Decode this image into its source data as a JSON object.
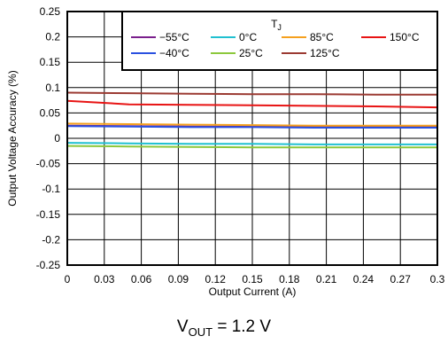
{
  "chart_data": {
    "type": "line",
    "xlabel": "Output Current (A)",
    "ylabel": "Output Voltage Accuracy (%)",
    "xlim": [
      0,
      0.3
    ],
    "ylim": [
      -0.25,
      0.25
    ],
    "x_ticks": [
      "0",
      "0.03",
      "0.06",
      "0.09",
      "0.12",
      "0.15",
      "0.18",
      "0.21",
      "0.24",
      "0.27",
      "0.3"
    ],
    "y_ticks": [
      "0.25",
      "0.2",
      "0.15",
      "0.1",
      "0.05",
      "0",
      "-0.05",
      "-0.1",
      "-0.15",
      "-0.2",
      "-0.25"
    ],
    "grid": true,
    "legend": {
      "title_main": "T",
      "title_sub": "J",
      "placement": "top-right"
    },
    "x": [
      0,
      0.05,
      0.1,
      0.15,
      0.2,
      0.25,
      0.3
    ],
    "series": [
      {
        "name": "−55°C",
        "color": "#7a1f8c",
        "values": [
          0.025,
          0.024,
          0.023,
          0.023,
          0.022,
          0.022,
          0.022
        ]
      },
      {
        "name": "−40°C",
        "color": "#2a50e0",
        "values": [
          0.024,
          0.023,
          0.022,
          0.022,
          0.021,
          0.021,
          0.021
        ]
      },
      {
        "name": "0°C",
        "color": "#20c0d0",
        "values": [
          -0.009,
          -0.01,
          -0.011,
          -0.011,
          -0.012,
          -0.012,
          -0.012
        ]
      },
      {
        "name": "25°C",
        "color": "#8cc83c",
        "values": [
          -0.015,
          -0.016,
          -0.017,
          -0.018,
          -0.018,
          -0.018,
          -0.018
        ]
      },
      {
        "name": "85°C",
        "color": "#f5a01e",
        "values": [
          0.029,
          0.028,
          0.027,
          0.026,
          0.025,
          0.025,
          0.025
        ]
      },
      {
        "name": "125°C",
        "color": "#9b3a32",
        "values": [
          0.09,
          0.089,
          0.088,
          0.087,
          0.087,
          0.086,
          0.086
        ]
      },
      {
        "name": "150°C",
        "color": "#e81414",
        "values": [
          0.074,
          0.067,
          0.066,
          0.065,
          0.064,
          0.063,
          0.061
        ]
      }
    ],
    "annotation": {
      "main": "V",
      "sub": "OUT",
      "suffix": " = 1.2 V"
    }
  }
}
